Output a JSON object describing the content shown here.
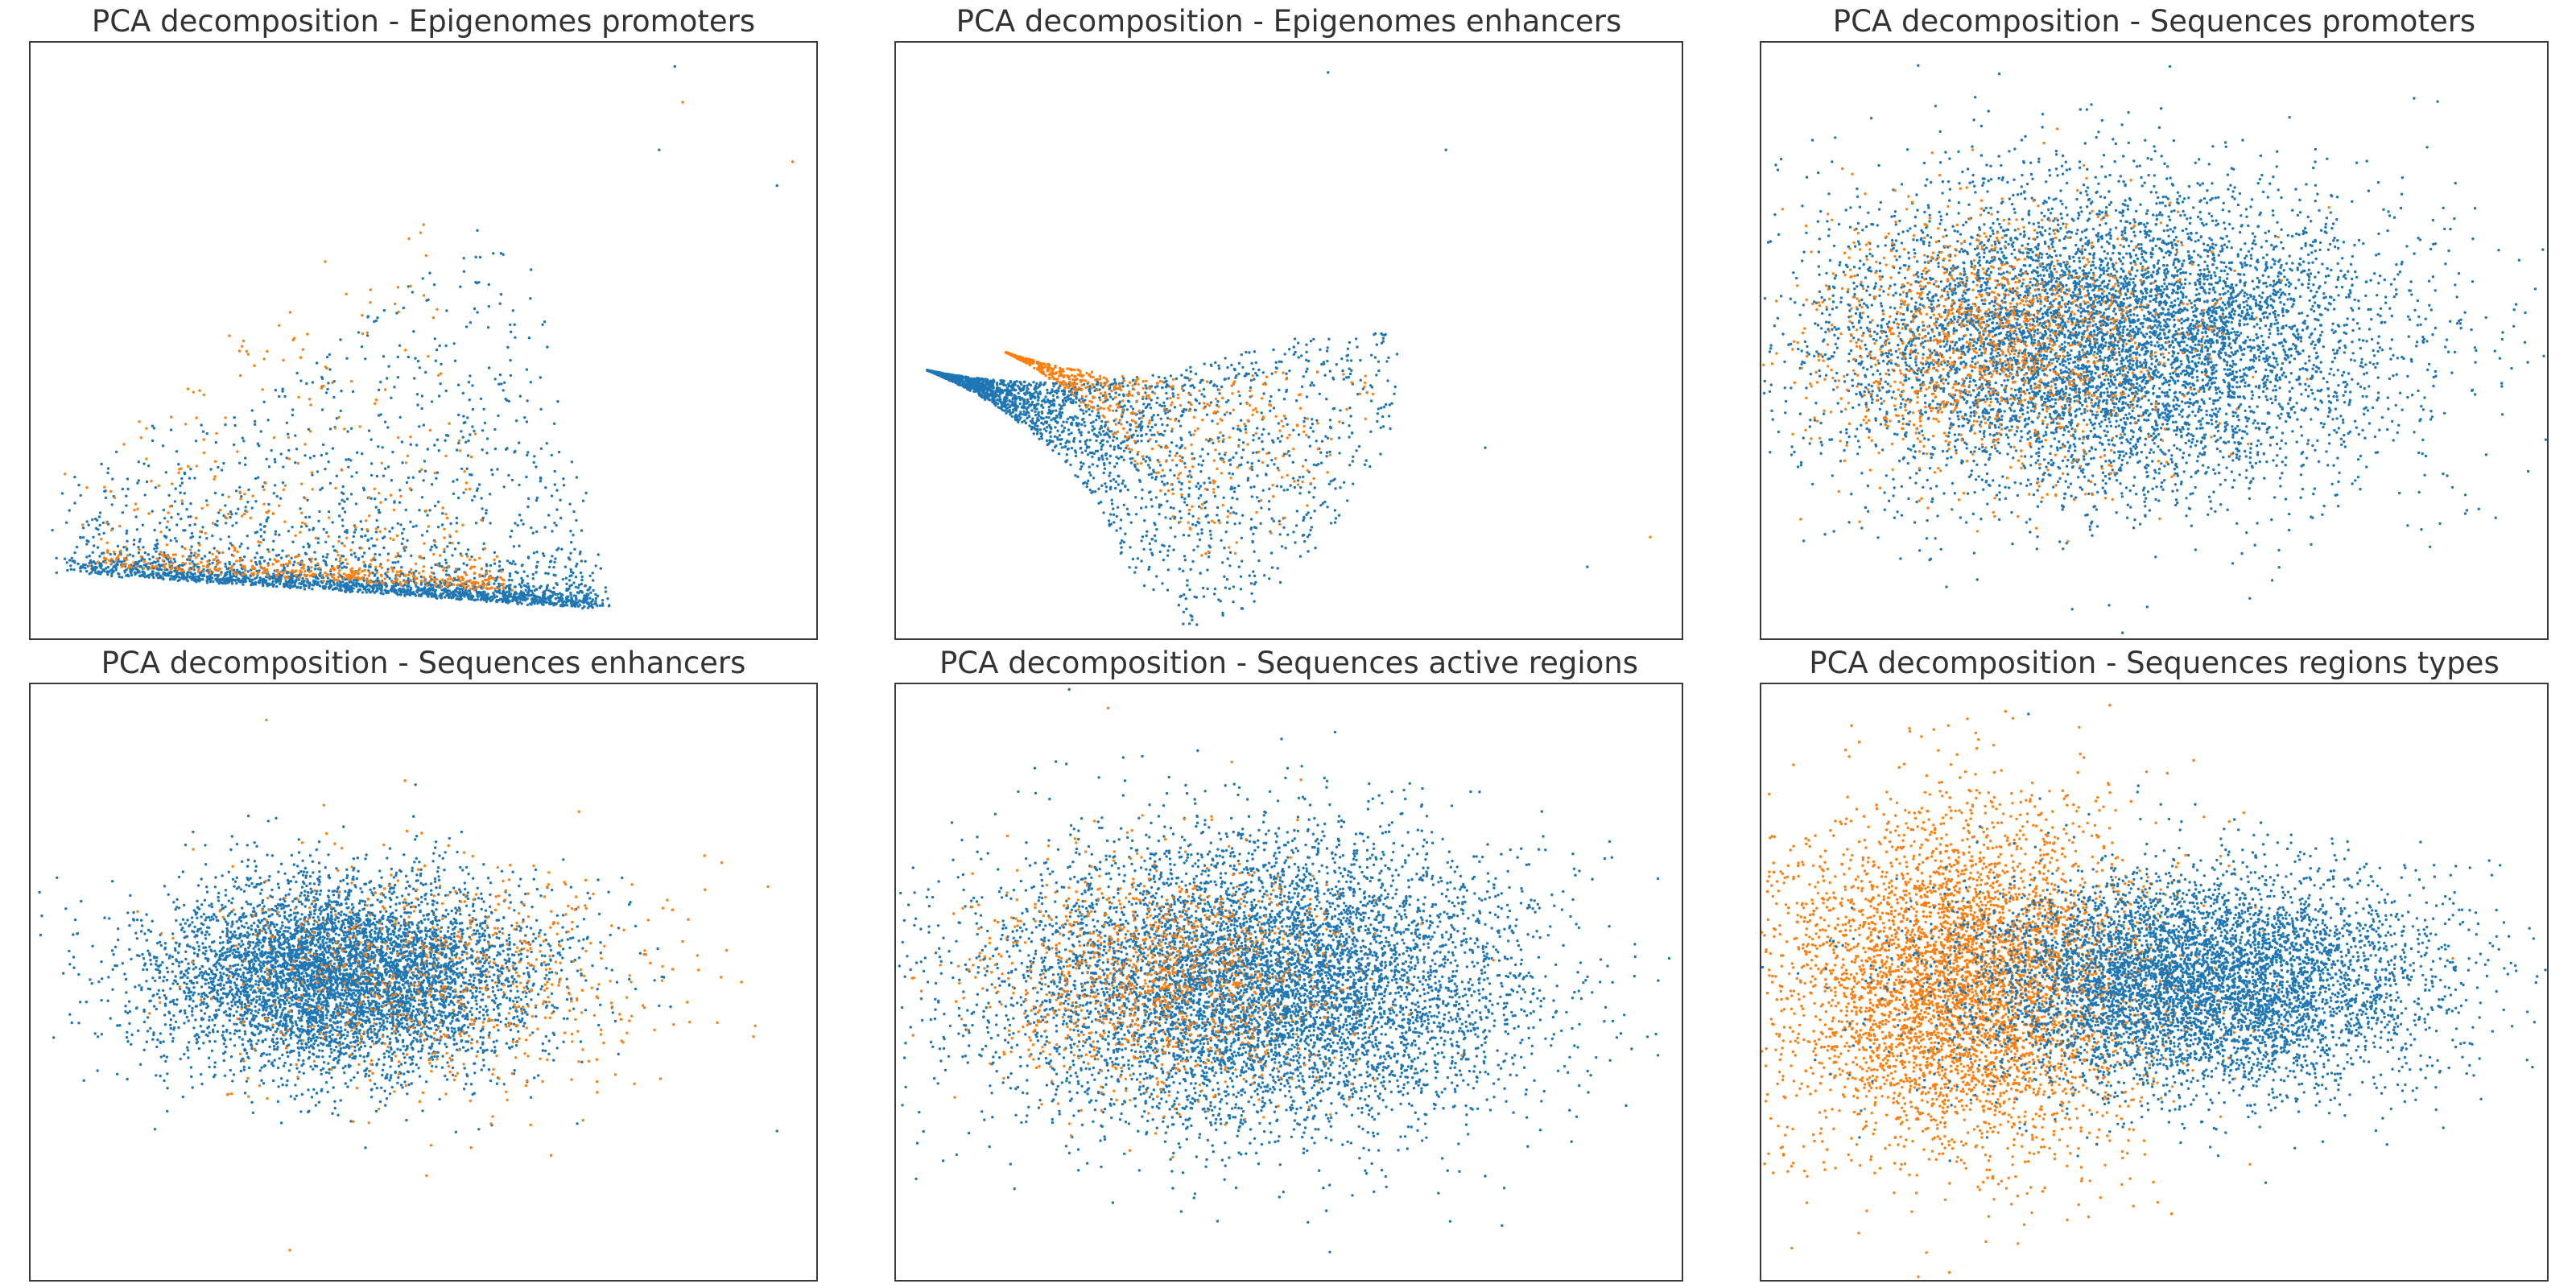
{
  "colors": {
    "series_a": "#1f77b4",
    "series_b": "#ff7f0e",
    "frame": "#3a3a3a",
    "title": "#333333"
  },
  "chart_data": [
    {
      "type": "scatter",
      "title": "PCA decomposition - Epigenomes promoters",
      "xlabel": "",
      "ylabel": "",
      "xlim": [
        0,
        100
      ],
      "ylim": [
        0,
        100
      ],
      "grid": false,
      "ticks": "none",
      "series": [
        {
          "color": "#1f77b4",
          "distribution": "wedge",
          "apex": [
            5,
            11
          ],
          "end": [
            72,
            5
          ],
          "spread": 0.16,
          "fan_top": [
            70,
            56
          ],
          "count": 2600
        },
        {
          "color": "#ff7f0e",
          "distribution": "wedge",
          "apex": [
            8,
            12
          ],
          "end": [
            60,
            8
          ],
          "spread": 0.2,
          "fan_top": [
            62,
            62
          ],
          "count": 650
        }
      ],
      "outliers": [
        [
          82,
          96,
          "#1f77b4"
        ],
        [
          83,
          90,
          "#ff7f0e"
        ],
        [
          97,
          80,
          "#ff7f0e"
        ],
        [
          95,
          76,
          "#1f77b4"
        ],
        [
          80,
          82,
          "#1f77b4"
        ]
      ]
    },
    {
      "type": "scatter",
      "title": "PCA decomposition - Epigenomes enhancers",
      "xlabel": "",
      "ylabel": "",
      "xlim": [
        0,
        100
      ],
      "ylim": [
        0,
        100
      ],
      "grid": false,
      "ticks": "none",
      "series": [
        {
          "color": "#1f77b4",
          "distribution": "cone",
          "apex": [
            4,
            45
          ],
          "dir": [
            1,
            -0.45
          ],
          "length": 60,
          "half_angle": 0.55,
          "count": 2600
        },
        {
          "color": "#ff7f0e",
          "distribution": "cone",
          "apex": [
            14,
            48
          ],
          "dir": [
            1,
            -0.6
          ],
          "length": 48,
          "half_angle": 0.45,
          "count": 650
        }
      ],
      "outliers": [
        [
          55,
          95,
          "#1f77b4"
        ],
        [
          70,
          82,
          "#1f77b4"
        ],
        [
          88,
          12,
          "#1f77b4"
        ],
        [
          96,
          17,
          "#ff7f0e"
        ],
        [
          75,
          32,
          "#1f77b4"
        ]
      ]
    },
    {
      "type": "scatter",
      "title": "PCA decomposition - Sequences promoters",
      "xlabel": "",
      "ylabel": "",
      "xlim": [
        0,
        100
      ],
      "ylim": [
        0,
        100
      ],
      "grid": false,
      "ticks": "none",
      "series": [
        {
          "color": "#1f77b4",
          "distribution": "blob",
          "center": [
            44,
            50
          ],
          "sx": 18,
          "sy": 13,
          "count": 7000
        },
        {
          "color": "#ff7f0e",
          "distribution": "blob",
          "center": [
            30,
            50
          ],
          "sx": 12,
          "sy": 11,
          "count": 1400
        }
      ],
      "outliers": [
        [
          5,
          20,
          "#ff7f0e"
        ],
        [
          94,
          47,
          "#1f77b4"
        ],
        [
          9,
          80,
          "#1f77b4"
        ],
        [
          52,
          96,
          "#1f77b4"
        ]
      ]
    },
    {
      "type": "scatter",
      "title": "PCA decomposition - Sequences enhancers",
      "xlabel": "",
      "ylabel": "",
      "xlim": [
        0,
        100
      ],
      "ylim": [
        0,
        100
      ],
      "grid": false,
      "ticks": "none",
      "series": [
        {
          "color": "#1f77b4",
          "distribution": "blob",
          "center": [
            40,
            51
          ],
          "sx": 12,
          "sy": 8,
          "count": 6000
        },
        {
          "color": "#ff7f0e",
          "distribution": "blob",
          "center": [
            52,
            50
          ],
          "sx": 15,
          "sy": 10,
          "count": 700
        }
      ],
      "outliers": [
        [
          5,
          53,
          "#1f77b4"
        ],
        [
          33,
          5,
          "#ff7f0e"
        ],
        [
          95,
          25,
          "#1f77b4"
        ],
        [
          30,
          94,
          "#ff7f0e"
        ]
      ]
    },
    {
      "type": "scatter",
      "title": "PCA decomposition - Sequences active regions",
      "xlabel": "",
      "ylabel": "",
      "xlim": [
        0,
        100
      ],
      "ylim": [
        0,
        100
      ],
      "grid": false,
      "ticks": "none",
      "series": [
        {
          "color": "#1f77b4",
          "distribution": "blob",
          "center": [
            46,
            50
          ],
          "sx": 17,
          "sy": 12,
          "count": 7000
        },
        {
          "color": "#ff7f0e",
          "distribution": "blob",
          "center": [
            34,
            50
          ],
          "sx": 11,
          "sy": 10,
          "count": 1200
        }
      ],
      "outliers": [
        [
          94,
          51,
          "#1f77b4"
        ],
        [
          27,
          96,
          "#ff7f0e"
        ],
        [
          6,
          20,
          "#1f77b4"
        ]
      ]
    },
    {
      "type": "scatter",
      "title": "PCA decomposition - Sequences regions types",
      "xlabel": "",
      "ylabel": "",
      "xlim": [
        0,
        100
      ],
      "ylim": [
        0,
        100
      ],
      "grid": false,
      "ticks": "none",
      "series": [
        {
          "color": "#ff7f0e",
          "distribution": "blob",
          "center": [
            26,
            50
          ],
          "sx": 12,
          "sy": 14,
          "count": 5000
        },
        {
          "color": "#1f77b4",
          "distribution": "blob",
          "center": [
            55,
            50
          ],
          "sx": 15,
          "sy": 9,
          "count": 6000
        }
      ],
      "outliers": [
        [
          90,
          52,
          "#1f77b4"
        ],
        [
          88,
          54,
          "#ff7f0e"
        ],
        [
          34,
          95,
          "#1f77b4"
        ],
        [
          24,
          20,
          "#1f77b4"
        ]
      ]
    }
  ]
}
